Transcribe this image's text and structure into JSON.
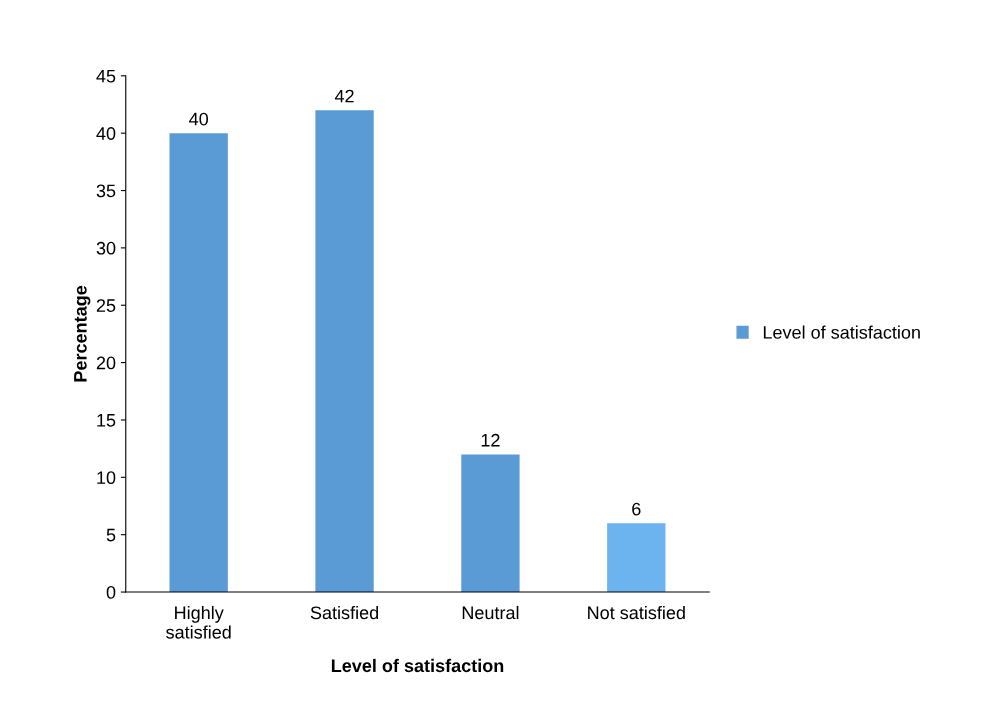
{
  "chart_data": {
    "type": "bar",
    "xlabel": "Level of satisfaction",
    "ylabel": "Percentage",
    "categories": [
      "Highly\nsatisfied",
      "Satisfied",
      "Neutral",
      "Not satisfied"
    ],
    "series": [
      {
        "name": "Level of satisfaction",
        "color": "#5b9bd5",
        "values": [
          40,
          42,
          12,
          6
        ],
        "colors": [
          "#5b9bd5",
          "#5b9bd5",
          "#5b9bd5",
          "#6cb4f0"
        ]
      }
    ],
    "ylim": [
      0,
      45
    ],
    "yticks": [
      0,
      5,
      10,
      15,
      20,
      25,
      30,
      35,
      40,
      45
    ],
    "data_labels": true,
    "grid": false,
    "legend": "right"
  }
}
